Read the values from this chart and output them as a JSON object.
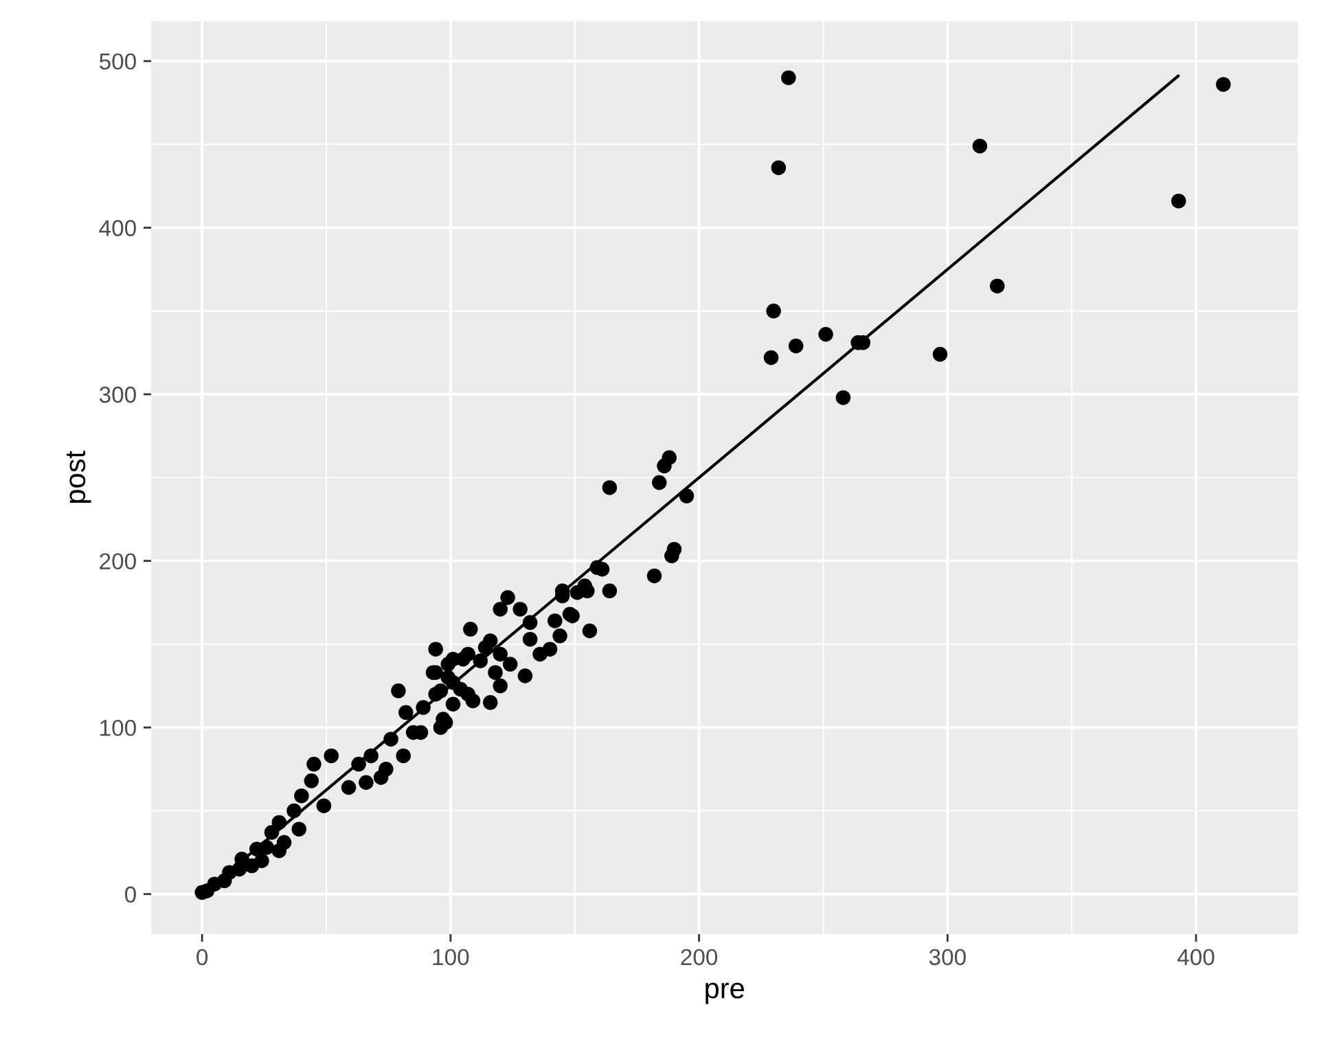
{
  "chart_data": {
    "type": "scatter",
    "xlabel": "pre",
    "ylabel": "post",
    "xlim": [
      -20.5,
      441
    ],
    "ylim": [
      -24,
      524
    ],
    "xticks": [
      0,
      100,
      200,
      300,
      400
    ],
    "yticks": [
      0,
      100,
      200,
      300,
      400,
      500
    ],
    "grid": true,
    "series": [
      {
        "color": "#000000",
        "marker": "circle",
        "x": [
          236,
          232,
          411,
          313,
          393,
          320,
          230,
          229,
          239,
          251,
          264,
          266,
          297,
          258,
          164,
          184,
          188,
          186,
          195,
          182,
          189,
          190,
          159,
          161,
          164,
          156,
          145,
          151,
          154,
          148,
          94,
          108,
          123,
          120,
          128,
          116,
          101,
          107,
          132,
          132,
          142,
          149,
          145,
          155,
          140,
          130,
          120,
          116,
          109,
          94,
          94,
          97,
          96,
          101,
          118,
          136,
          144,
          124,
          112,
          99,
          104,
          114,
          120,
          0,
          5,
          11,
          16,
          22,
          28,
          31,
          37,
          40,
          45,
          52,
          44,
          49,
          33,
          39,
          24,
          26,
          59,
          63,
          68,
          74,
          66,
          72,
          76,
          79,
          82,
          81,
          85,
          89,
          88,
          93,
          96,
          98,
          99,
          105,
          107,
          101,
          31,
          20,
          15,
          9,
          2
        ],
        "values": [
          490,
          436,
          486,
          449,
          416,
          365,
          350,
          322,
          329,
          336,
          331,
          331,
          324,
          298,
          244,
          247,
          262,
          257,
          239,
          191,
          203,
          207,
          196,
          195,
          182,
          158,
          179,
          181,
          185,
          168,
          147,
          159,
          178,
          171,
          171,
          152,
          141,
          144,
          163,
          153,
          164,
          167,
          182,
          182,
          147,
          131,
          125,
          115,
          116,
          133,
          120,
          105,
          100,
          114,
          133,
          144,
          155,
          138,
          140,
          130,
          123,
          148,
          144,
          1,
          6,
          13,
          21,
          27,
          37,
          43,
          50,
          59,
          78,
          83,
          68,
          53,
          31,
          39,
          20,
          28,
          64,
          78,
          83,
          75,
          67,
          70,
          93,
          122,
          109,
          83,
          97,
          112,
          97,
          133,
          122,
          103,
          138,
          141,
          120,
          127,
          26,
          17,
          15,
          8,
          2
        ]
      },
      {
        "type": "line",
        "color": "#000000",
        "marker": "none",
        "x": [
          0,
          392.8
        ],
        "values": [
          0,
          491
        ]
      }
    ]
  }
}
